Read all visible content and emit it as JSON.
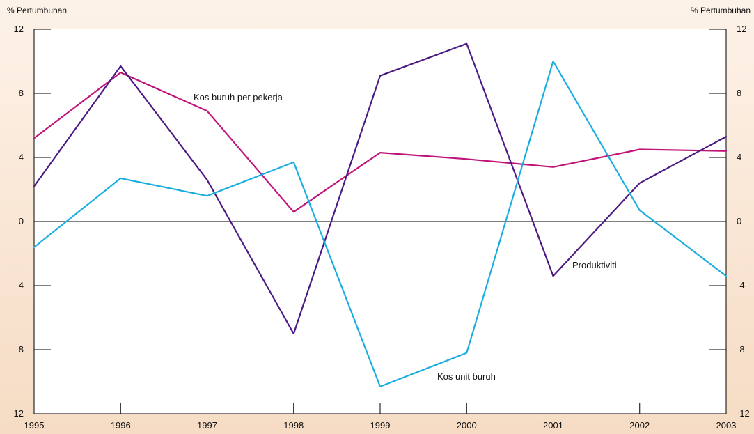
{
  "chart_data": {
    "type": "line",
    "y_axis_title_left": "% Pertumbuhan",
    "y_axis_title_right": "% Pertumbuhan",
    "x": [
      "1995",
      "1996",
      "1997",
      "1998",
      "1999",
      "2000",
      "2001",
      "2002",
      "2003"
    ],
    "ylim": [
      -12,
      12
    ],
    "y_ticks": [
      12,
      8,
      4,
      0,
      -4,
      -8,
      -12
    ],
    "grid": false,
    "zero_line": true,
    "series": [
      {
        "name": "Kos buruh per pekerja",
        "color": "#c0147a",
        "values": [
          5.2,
          9.3,
          6.9,
          0.6,
          4.3,
          3.9,
          3.4,
          4.5,
          4.4
        ]
      },
      {
        "name": "Produktiviti",
        "color": "#4b1a82",
        "values": [
          2.2,
          9.7,
          2.6,
          -7.0,
          9.1,
          11.1,
          -3.4,
          2.4,
          5.3
        ]
      },
      {
        "name": "Kos unit buruh",
        "color": "#1aaee0",
        "values": [
          -1.6,
          2.7,
          1.6,
          3.7,
          -10.3,
          -8.2,
          10.0,
          0.7,
          -3.4
        ]
      }
    ],
    "annotations": [
      {
        "text": "Kos buruh per pekerja",
        "series": 0
      },
      {
        "text": "Produktiviti",
        "series": 1
      },
      {
        "text": "Kos unit buruh",
        "series": 2
      }
    ]
  }
}
